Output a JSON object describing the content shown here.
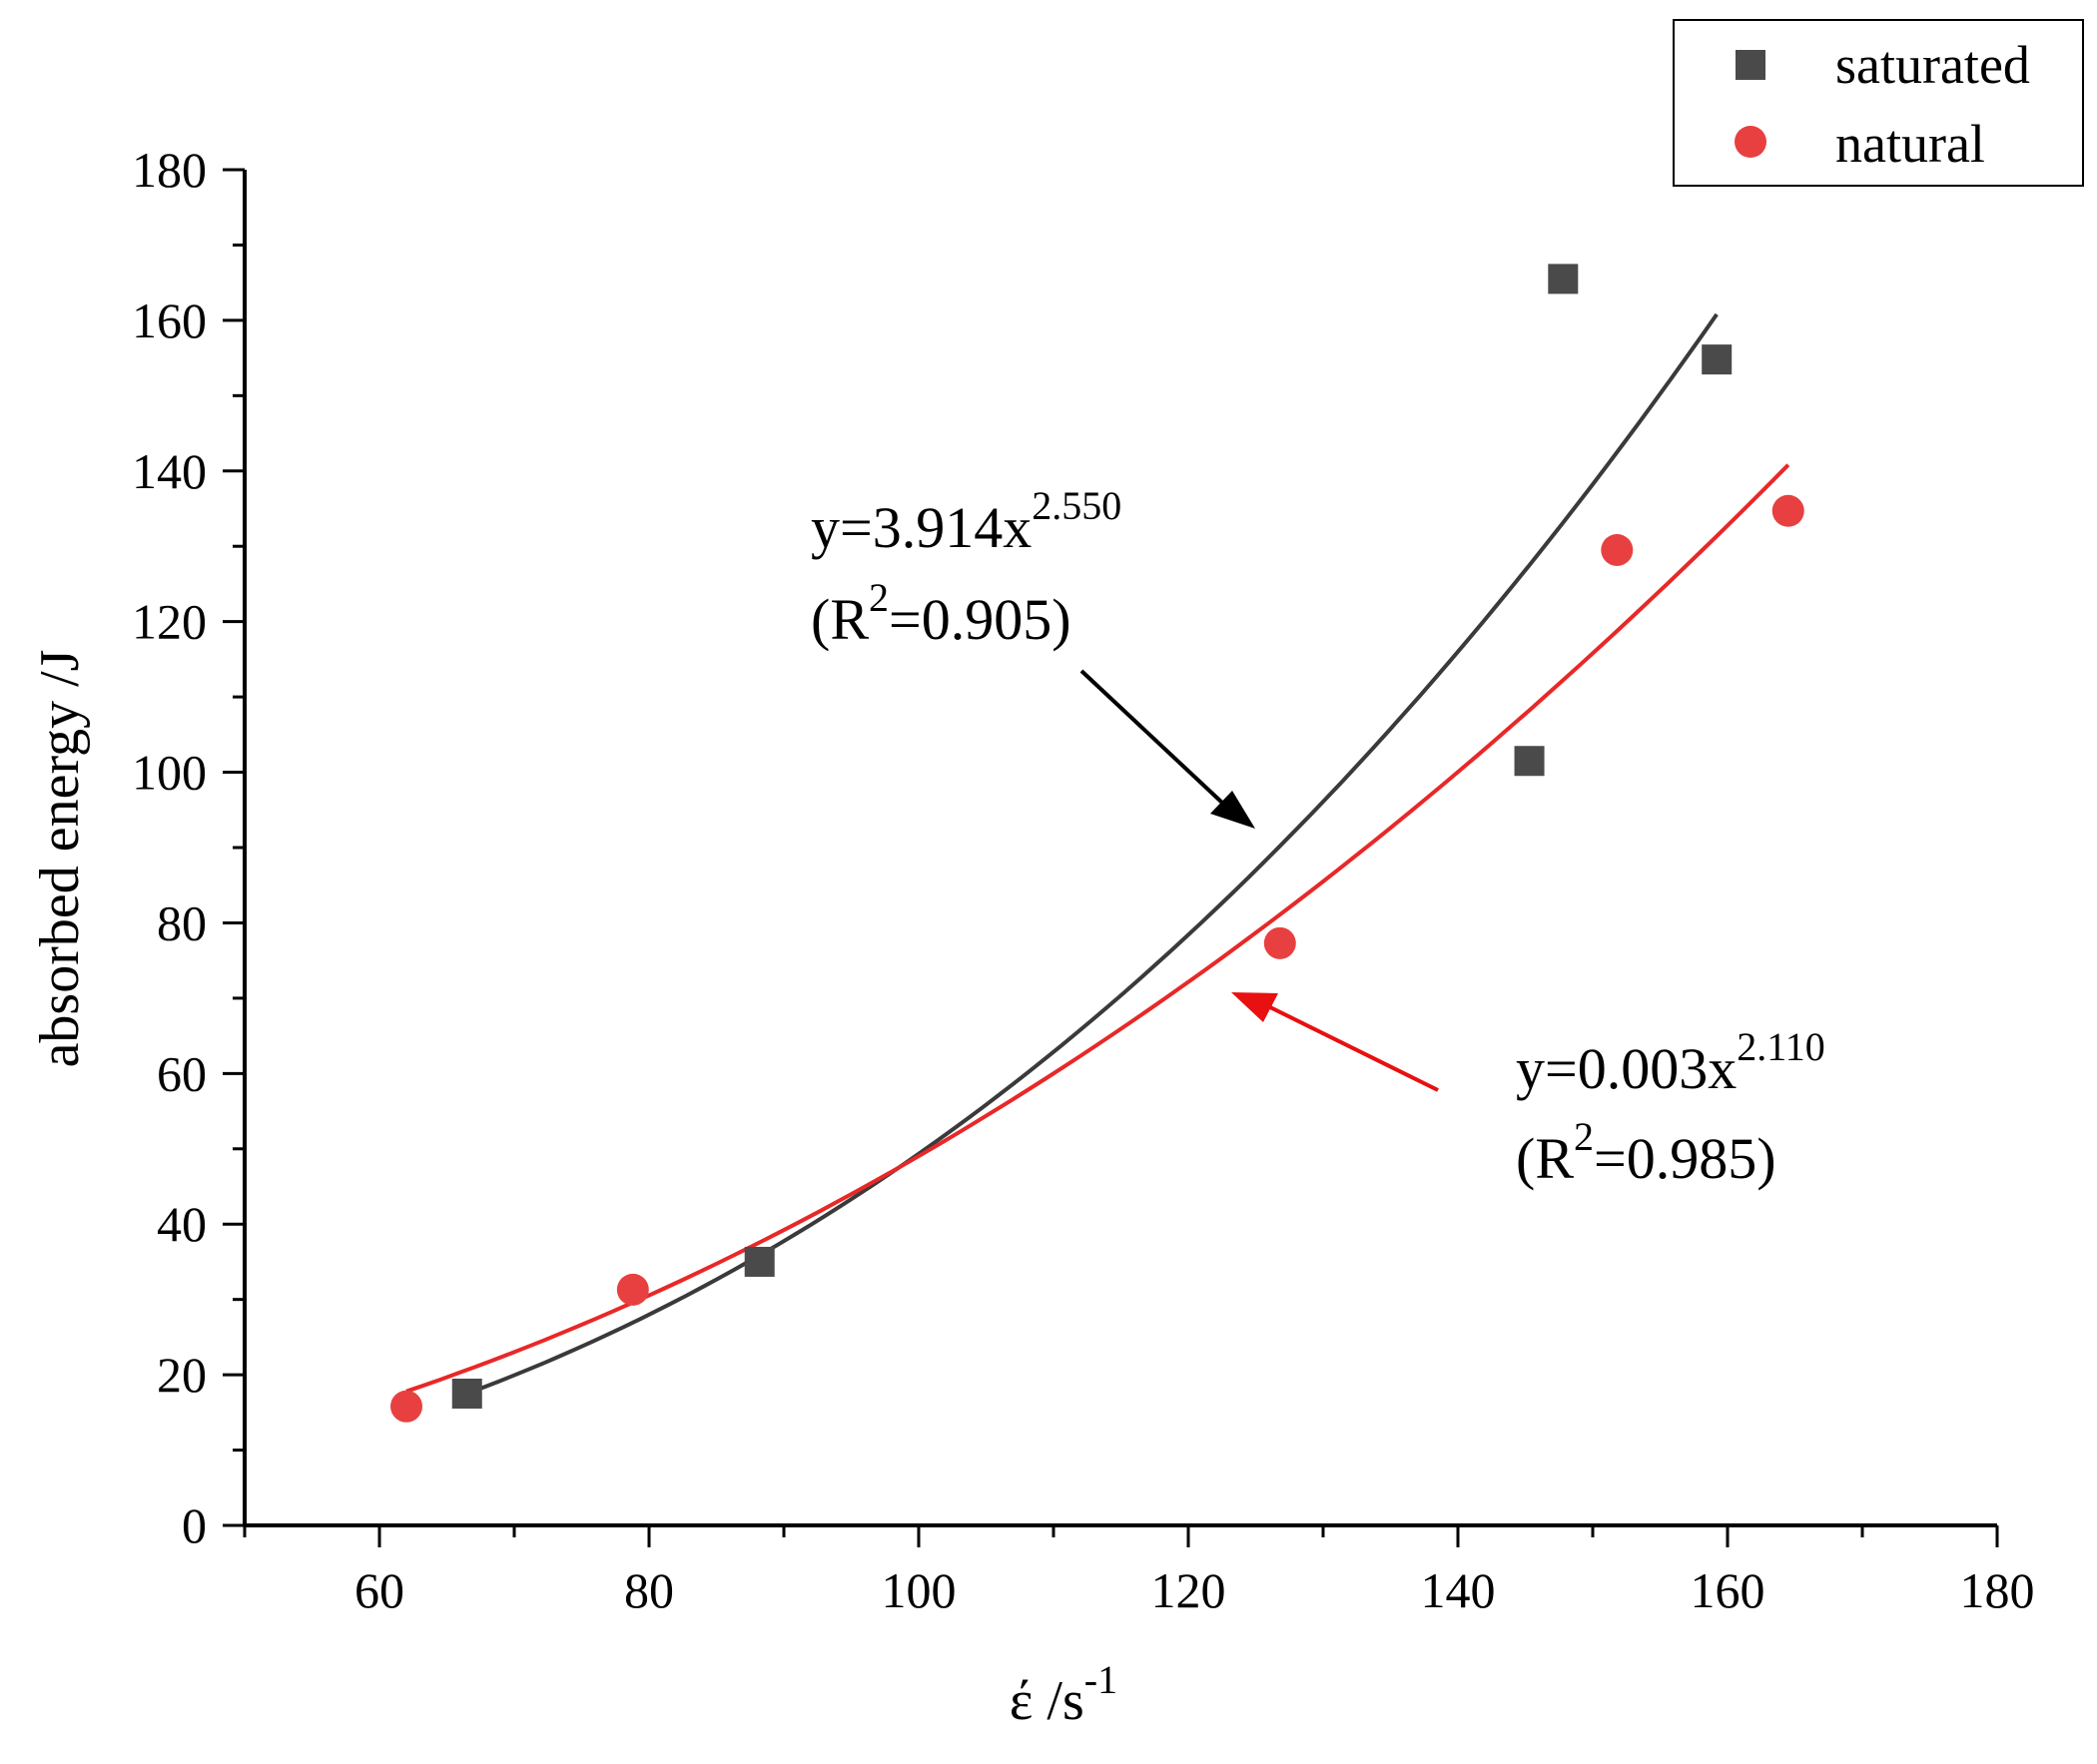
{
  "chart_data": {
    "type": "scatter",
    "title": "",
    "xlabel": "έ /s",
    "xlabel_sup": "-1",
    "ylabel": "absorbed energy /J",
    "xlim": [
      50,
      180
    ],
    "ylim": [
      0,
      180
    ],
    "xticks": [
      60,
      80,
      100,
      120,
      140,
      160,
      180
    ],
    "yticks": [
      0,
      20,
      40,
      60,
      80,
      100,
      120,
      140,
      160,
      180
    ],
    "x_minor_step": 10,
    "y_minor_step": 10,
    "grid": false,
    "legend_position": "top-right",
    "series": [
      {
        "name": "saturated",
        "marker": "square",
        "color": "#4a4a4a",
        "points": [
          [
            66.5,
            17.5
          ],
          [
            88.2,
            35.0
          ],
          [
            145.3,
            101.5
          ],
          [
            147.8,
            165.5
          ],
          [
            159.2,
            154.8
          ]
        ],
        "fit": {
          "equation": "y=3.914x",
          "exponent_label": "2.550",
          "r2_prefix": "(R",
          "r2_sup": "2",
          "r2_suffix": "=0.905)",
          "x_range": [
            66.5,
            159.2
          ],
          "y_start": 17.5,
          "y_end": 160.8
        }
      },
      {
        "name": "natural",
        "marker": "circle",
        "color": "#e84040",
        "points": [
          [
            62.0,
            15.8
          ],
          [
            78.8,
            31.3
          ],
          [
            126.8,
            77.3
          ],
          [
            151.8,
            129.5
          ],
          [
            164.5,
            134.7
          ]
        ],
        "fit": {
          "equation": "y=0.003x",
          "exponent_label": "2.110",
          "r2_prefix": "(R",
          "r2_sup": "2",
          "r2_suffix": "=0.985)",
          "x_range": [
            62.0,
            164.5
          ],
          "y_start": 17.8,
          "y_end": 140.8
        }
      }
    ],
    "fit_colors": {
      "saturated": "#3a3a3a",
      "natural": "#e82828"
    },
    "arrow_colors": {
      "saturated": "#000000",
      "natural": "#e81010"
    }
  }
}
